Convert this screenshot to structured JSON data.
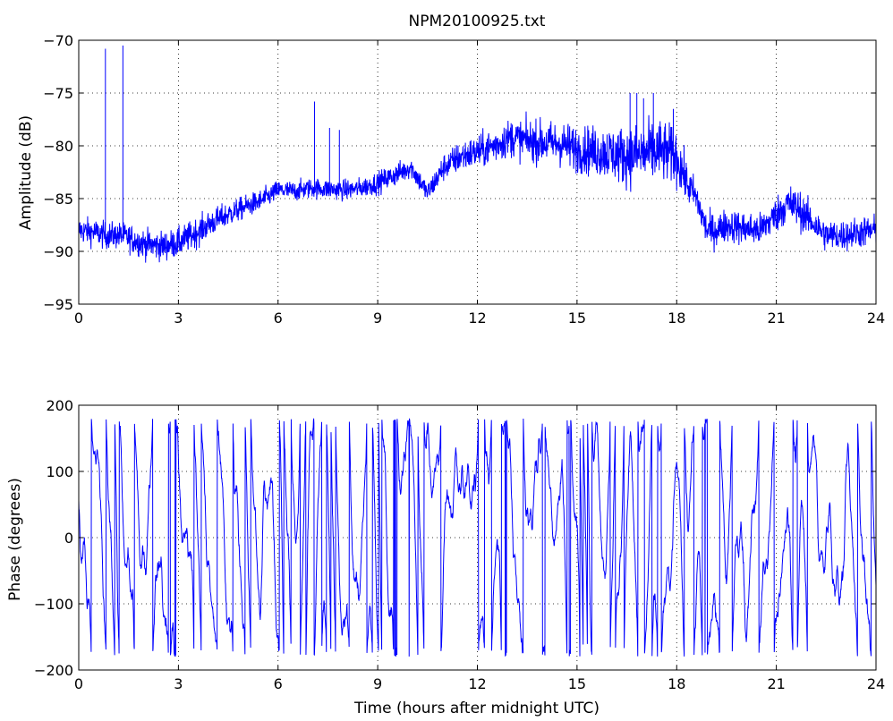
{
  "chart_data": [
    {
      "type": "line",
      "title": "NPM20100925.txt",
      "xlabel": "",
      "ylabel": "Amplitude (dB)",
      "xlim": [
        0,
        24
      ],
      "ylim": [
        -95,
        -70
      ],
      "xticks": [
        0,
        3,
        6,
        9,
        12,
        15,
        18,
        21,
        24
      ],
      "yticks": [
        -95,
        -90,
        -85,
        -80,
        -75,
        -70
      ],
      "xtick_labels": [
        "0",
        "3",
        "6",
        "9",
        "12",
        "15",
        "18",
        "21",
        "24"
      ],
      "ytick_labels": [
        "−95",
        "−90",
        "−85",
        "−80",
        "−75",
        "−70"
      ],
      "grid": true,
      "color": "#0000ff",
      "series": [
        {
          "x": [
            0,
            0.5,
            0.8,
            1.3,
            2,
            2.5,
            3,
            3.5,
            4,
            4.5,
            5,
            5.5,
            6,
            6.5,
            7,
            7.5,
            8,
            8.5,
            9,
            9.5,
            10,
            10.5,
            11,
            11.5,
            12,
            12.5,
            13,
            13.5,
            14,
            14.5,
            15,
            15.5,
            16,
            16.5,
            17,
            17.5,
            18,
            18.3,
            18.6,
            18.9,
            19.2,
            19.5,
            20,
            20.5,
            21,
            21.3,
            21.6,
            22,
            22.5,
            23,
            23.5,
            24
          ],
          "y": [
            -88,
            -88.2,
            -88.5,
            -88.5,
            -89.3,
            -89.5,
            -89.2,
            -88.3,
            -87.3,
            -86.5,
            -85.8,
            -85.2,
            -84.2,
            -84.3,
            -84,
            -84.1,
            -84.2,
            -84,
            -83.5,
            -82.8,
            -82,
            -84.5,
            -82,
            -81,
            -80.6,
            -80,
            -79.2,
            -79.5,
            -79.7,
            -79.8,
            -80.3,
            -80.5,
            -80.7,
            -81,
            -80.8,
            -80.5,
            -81,
            -83.5,
            -85,
            -88,
            -88,
            -87.5,
            -87.8,
            -88,
            -86.5,
            -85.5,
            -85.8,
            -87,
            -88.5,
            -88.5,
            -88.2,
            -88
          ],
          "noise": [
            1.2,
            1.2,
            1.2,
            1.2,
            1.3,
            1.3,
            1.3,
            1.3,
            1.2,
            1.1,
            1.0,
            1.0,
            0.9,
            0.9,
            0.9,
            0.9,
            0.9,
            0.9,
            1.0,
            1.0,
            1.0,
            1.0,
            1.2,
            1.4,
            1.5,
            1.6,
            1.7,
            1.8,
            1.9,
            2.0,
            2.1,
            2.2,
            2.4,
            2.6,
            2.8,
            2.8,
            2.5,
            1.8,
            1.5,
            1.5,
            1.5,
            1.5,
            1.5,
            1.5,
            1.6,
            1.8,
            1.8,
            1.5,
            1.4,
            1.4,
            1.4,
            1.4
          ],
          "spikes": [
            {
              "x": 0.8,
              "y": -70.8
            },
            {
              "x": 1.33,
              "y": -70.5
            },
            {
              "x": 7.1,
              "y": -75.8
            },
            {
              "x": 7.55,
              "y": -78.3
            },
            {
              "x": 7.85,
              "y": -78.5
            },
            {
              "x": 16.6,
              "y": -75
            },
            {
              "x": 16.8,
              "y": -75
            },
            {
              "x": 17.0,
              "y": -75.5
            },
            {
              "x": 17.3,
              "y": -75
            },
            {
              "x": 17.9,
              "y": -76.5
            }
          ]
        }
      ]
    },
    {
      "type": "line",
      "title": "",
      "xlabel": "Time (hours after midnight UTC)",
      "ylabel": "Phase (degrees)",
      "xlim": [
        0,
        24
      ],
      "ylim": [
        -200,
        200
      ],
      "xticks": [
        0,
        3,
        6,
        9,
        12,
        15,
        18,
        21,
        24
      ],
      "yticks": [
        -200,
        -100,
        0,
        100,
        200
      ],
      "xtick_labels": [
        "0",
        "3",
        "6",
        "9",
        "12",
        "15",
        "18",
        "21",
        "24"
      ],
      "ytick_labels": [
        "−200",
        "−100",
        "0",
        "100",
        "200"
      ],
      "grid": true,
      "color": "#0000ff",
      "series": [
        {
          "wrap_range": [
            -180,
            180
          ],
          "pattern": "wrapped phase, sawtooth jumps between +180 and -180 throughout 0-24 h"
        }
      ]
    }
  ]
}
